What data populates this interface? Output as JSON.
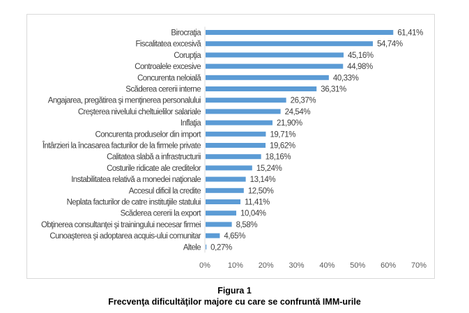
{
  "chart_data": {
    "type": "bar",
    "orientation": "horizontal",
    "title": "Frecvenţa dificultăţilor majore cu care se confruntă IMM-urile",
    "figure_number": "Figura 1",
    "xlabel": "",
    "ylabel": "",
    "xlim": [
      0,
      70
    ],
    "x_ticks": [
      "0%",
      "10%",
      "20%",
      "30%",
      "40%",
      "50%",
      "60%",
      "70%"
    ],
    "grid": false,
    "legend": "none",
    "bar_color": "#5b9bd5",
    "categories": [
      "Birocraţia",
      "Fiscalitatea excesivă",
      "Corupţia",
      "Controalele excesive",
      "Concurenta neloială",
      "Scăderea cererii interne",
      "Angajarea, pregătirea şi menţinerea personalului",
      "Creşterea nivelului cheltuielilor salariale",
      "Inflaţia",
      "Concurenta produselor din import",
      "Întârzieri la încasarea facturilor de la firmele private",
      "Calitatea slabă a infrastructurii",
      "Costurile ridicate ale creditelor",
      "Instabilitatea relativă a monedei naţionale",
      "Accesul dificil la credite",
      "Neplata facturilor de catre instituţiile statului",
      "Scăderea cererii la export",
      "Obţinerea consultanţei şi trainingului necesar firmei",
      "Cunoaşterea şi adoptarea acquis-ului comunitar",
      "Altele"
    ],
    "values": [
      61.41,
      54.74,
      45.16,
      44.98,
      40.33,
      36.31,
      26.37,
      24.54,
      21.9,
      19.71,
      19.62,
      18.16,
      15.24,
      13.14,
      12.5,
      11.41,
      10.04,
      8.58,
      4.65,
      0.27
    ],
    "value_labels": [
      "61,41%",
      "54,74%",
      "45,16%",
      "44,98%",
      "40,33%",
      "36,31%",
      "26,37%",
      "24,54%",
      "21,90%",
      "19,71%",
      "19,62%",
      "18,16%",
      "15,24%",
      "13,14%",
      "12,50%",
      "11,41%",
      "10,04%",
      "8,58%",
      "4,65%",
      "0,27%"
    ]
  }
}
